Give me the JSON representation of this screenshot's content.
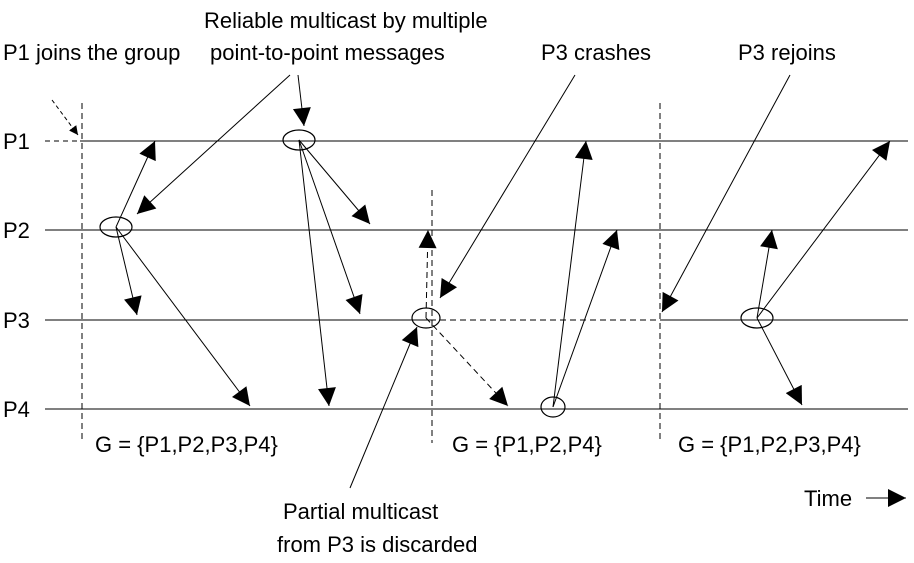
{
  "processes": [
    "P1",
    "P2",
    "P3",
    "P4"
  ],
  "annotations": {
    "p1_joins": "P1 joins the group",
    "reliable_line1": "Reliable multicast by multiple",
    "reliable_line2": "point-to-point messages",
    "p3_crashes": "P3 crashes",
    "p3_rejoins": "P3 rejoins",
    "partial_line1": "Partial multicast",
    "partial_line2": "from P3 is discarded"
  },
  "groups": [
    "G = {P1,P2,P3,P4}",
    "G = {P1,P2,P4}",
    "G = {P1,P2,P3,P4}"
  ],
  "time_label": "Time"
}
